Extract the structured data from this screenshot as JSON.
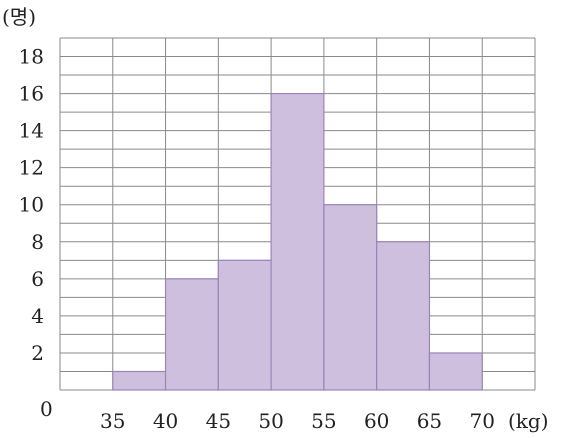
{
  "chart_data": {
    "type": "bar",
    "subtype": "histogram",
    "bins": [
      {
        "from": 35,
        "to": 40,
        "value": 1
      },
      {
        "from": 40,
        "to": 45,
        "value": 6
      },
      {
        "from": 45,
        "to": 50,
        "value": 7
      },
      {
        "from": 50,
        "to": 55,
        "value": 16
      },
      {
        "from": 55,
        "to": 60,
        "value": 10
      },
      {
        "from": 60,
        "to": 65,
        "value": 8
      },
      {
        "from": 65,
        "to": 70,
        "value": 2
      }
    ],
    "xlim": [
      30,
      75
    ],
    "ylim": [
      0,
      19
    ],
    "x_ticks": [
      "35",
      "40",
      "45",
      "50",
      "55",
      "60",
      "65",
      "70"
    ],
    "y_ticks": [
      "2",
      "4",
      "6",
      "8",
      "10",
      "12",
      "14",
      "16",
      "18"
    ],
    "origin_label": "0",
    "x_unit": "(kg)",
    "y_unit": "(명)",
    "grid": true,
    "bar_color": "#cfbfde",
    "bar_edge_color": "#9b84b8",
    "grid_color": "#8a8a8a"
  }
}
